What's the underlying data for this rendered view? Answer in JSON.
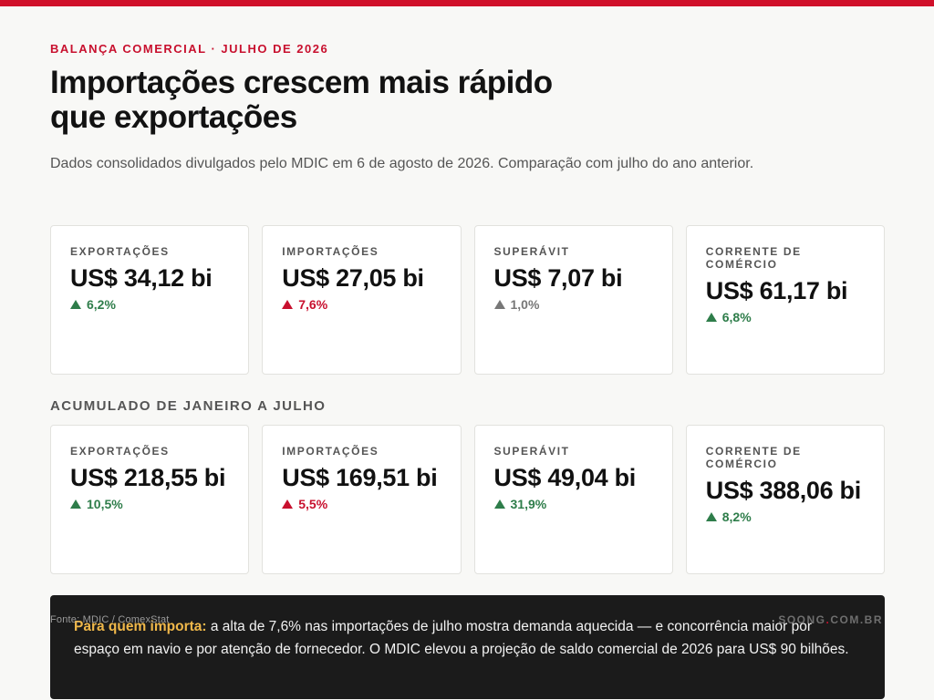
{
  "header": {
    "kicker": "BALANÇA COMERCIAL · JULHO DE 2026",
    "headline_line1": "Importações crescem mais rápido",
    "headline_line2": "que exportações",
    "subtitle": "Dados consolidados divulgados pelo MDIC em 6 de agosto de 2026. Comparação com julho do ano anterior."
  },
  "monthly": [
    {
      "label": "EXPORTAÇÕES",
      "value": "US$ 34,12 bi",
      "delta": "6,2%",
      "trend": "up",
      "color": "#2e7d4a"
    },
    {
      "label": "IMPORTAÇÕES",
      "value": "US$ 27,05 bi",
      "delta": "7,6%",
      "trend": "up",
      "color": "#c8102e"
    },
    {
      "label": "SUPERÁVIT",
      "value": "US$ 7,07 bi",
      "delta": "1,0%",
      "trend": "up",
      "color": "#777777"
    },
    {
      "label": "CORRENTE DE COMÉRCIO",
      "value": "US$ 61,17 bi",
      "delta": "6,8%",
      "trend": "up",
      "color": "#2e7d4a"
    }
  ],
  "accumulated": {
    "section_label": "ACUMULADO DE JANEIRO A JULHO",
    "cards": [
      {
        "label": "EXPORTAÇÕES",
        "value": "US$ 218,55 bi",
        "delta": "10,5%",
        "trend": "up",
        "color": "#2e7d4a"
      },
      {
        "label": "IMPORTAÇÕES",
        "value": "US$ 169,51 bi",
        "delta": "5,5%",
        "trend": "up",
        "color": "#c8102e"
      },
      {
        "label": "SUPERÁVIT",
        "value": "US$ 49,04 bi",
        "delta": "31,9%",
        "trend": "up",
        "color": "#2e7d4a"
      },
      {
        "label": "CORRENTE DE COMÉRCIO",
        "value": "US$ 388,06 bi",
        "delta": "8,2%",
        "trend": "up",
        "color": "#2e7d4a"
      }
    ]
  },
  "note": {
    "lead": "Para quem importa:",
    "text": " a alta de 7,6% nas importações de julho mostra demanda aquecida — e concorrência maior por espaço em navio e por atenção de fornecedor. O MDIC elevou a projeção de saldo comercial de 2026 para US$ 90 bilhões."
  },
  "footer": {
    "source": "Fonte: MDIC / ComexStat",
    "brand_prefix": "SOONG",
    "brand_dot": ".",
    "brand_suffix": "COM.BR"
  },
  "icons": {
    "trend_up": "triangle-up-icon"
  },
  "colors": {
    "accent": "#c8102e",
    "positive": "#2e7d4a",
    "neutral": "#777777",
    "note_bg": "#1b1b1b",
    "note_lead": "#f0b84a"
  }
}
